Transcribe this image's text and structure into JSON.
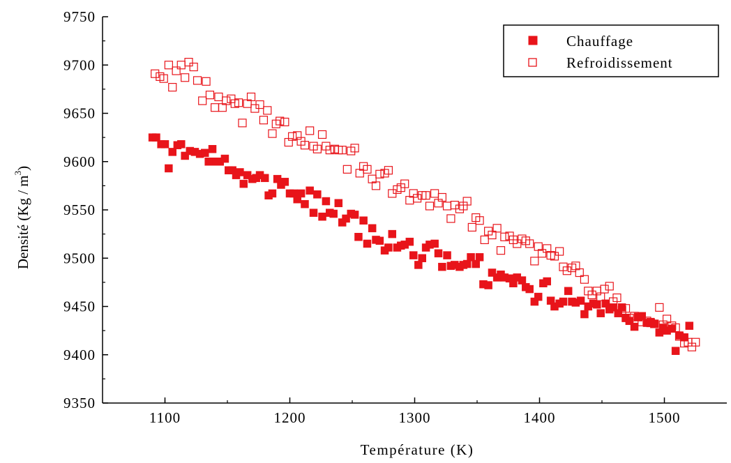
{
  "chart_data": {
    "type": "scatter",
    "title": "",
    "xlabel": "Température (K)",
    "ylabel_main": "Densité (Kg / m",
    "ylabel_sup": "3",
    "ylabel_close": ")",
    "xlim": [
      1050,
      1550
    ],
    "ylim": [
      9350,
      9750
    ],
    "xticks": [
      1100,
      1200,
      1300,
      1400,
      1500
    ],
    "yticks": [
      9350,
      9400,
      9450,
      9500,
      9550,
      9600,
      9650,
      9700,
      9750
    ],
    "xtick_labels": [
      "1100",
      "1200",
      "1300",
      "1400",
      "1500"
    ],
    "ytick_labels": [
      "9350",
      "9400",
      "9450",
      "9500",
      "9550",
      "9600",
      "9650",
      "9700",
      "9750"
    ],
    "grid": false,
    "legend_position": "top-right",
    "colors": {
      "series": "#e8141a",
      "axis": "#000000"
    },
    "series": [
      {
        "name": "Chauffage",
        "marker": "filled-square",
        "points": [
          [
            1090,
            9625
          ],
          [
            1093,
            9625
          ],
          [
            1097,
            9618
          ],
          [
            1100,
            9618
          ],
          [
            1103,
            9593
          ],
          [
            1106,
            9610
          ],
          [
            1110,
            9617
          ],
          [
            1113,
            9618
          ],
          [
            1116,
            9606
          ],
          [
            1120,
            9611
          ],
          [
            1124,
            9610
          ],
          [
            1128,
            9608
          ],
          [
            1132,
            9609
          ],
          [
            1135,
            9600
          ],
          [
            1138,
            9613
          ],
          [
            1141,
            9600
          ],
          [
            1144,
            9600
          ],
          [
            1148,
            9603
          ],
          [
            1151,
            9591
          ],
          [
            1154,
            9591
          ],
          [
            1157,
            9586
          ],
          [
            1160,
            9589
          ],
          [
            1163,
            9577
          ],
          [
            1166,
            9586
          ],
          [
            1170,
            9582
          ],
          [
            1173,
            9583
          ],
          [
            1176,
            9586
          ],
          [
            1180,
            9583
          ],
          [
            1183,
            9565
          ],
          [
            1186,
            9567
          ],
          [
            1190,
            9582
          ],
          [
            1193,
            9576
          ],
          [
            1196,
            9579
          ],
          [
            1200,
            9567
          ],
          [
            1203,
            9567
          ],
          [
            1206,
            9561
          ],
          [
            1209,
            9567
          ],
          [
            1212,
            9556
          ],
          [
            1216,
            9570
          ],
          [
            1219,
            9547
          ],
          [
            1222,
            9566
          ],
          [
            1226,
            9543
          ],
          [
            1229,
            9559
          ],
          [
            1232,
            9547
          ],
          [
            1235,
            9546
          ],
          [
            1239,
            9557
          ],
          [
            1242,
            9537
          ],
          [
            1245,
            9541
          ],
          [
            1249,
            9546
          ],
          [
            1252,
            9545
          ],
          [
            1255,
            9522
          ],
          [
            1259,
            9539
          ],
          [
            1262,
            9515
          ],
          [
            1266,
            9531
          ],
          [
            1269,
            9519
          ],
          [
            1272,
            9518
          ],
          [
            1276,
            9508
          ],
          [
            1279,
            9511
          ],
          [
            1282,
            9525
          ],
          [
            1286,
            9511
          ],
          [
            1289,
            9513
          ],
          [
            1292,
            9514
          ],
          [
            1296,
            9517
          ],
          [
            1299,
            9503
          ],
          [
            1303,
            9493
          ],
          [
            1306,
            9500
          ],
          [
            1309,
            9511
          ],
          [
            1312,
            9514
          ],
          [
            1316,
            9515
          ],
          [
            1319,
            9505
          ],
          [
            1322,
            9491
          ],
          [
            1326,
            9503
          ],
          [
            1329,
            9492
          ],
          [
            1332,
            9493
          ],
          [
            1336,
            9491
          ],
          [
            1339,
            9493
          ],
          [
            1342,
            9494
          ],
          [
            1345,
            9501
          ],
          [
            1349,
            9494
          ],
          [
            1352,
            9501
          ],
          [
            1355,
            9473
          ],
          [
            1359,
            9472
          ],
          [
            1362,
            9485
          ],
          [
            1366,
            9480
          ],
          [
            1369,
            9483
          ],
          [
            1372,
            9480
          ],
          [
            1376,
            9479
          ],
          [
            1379,
            9474
          ],
          [
            1382,
            9480
          ],
          [
            1386,
            9477
          ],
          [
            1389,
            9470
          ],
          [
            1392,
            9468
          ],
          [
            1396,
            9455
          ],
          [
            1399,
            9460
          ],
          [
            1403,
            9474
          ],
          [
            1406,
            9476
          ],
          [
            1409,
            9456
          ],
          [
            1412,
            9450
          ],
          [
            1416,
            9453
          ],
          [
            1419,
            9455
          ],
          [
            1423,
            9466
          ],
          [
            1426,
            9455
          ],
          [
            1429,
            9454
          ],
          [
            1433,
            9456
          ],
          [
            1436,
            9442
          ],
          [
            1439,
            9450
          ],
          [
            1443,
            9453
          ],
          [
            1446,
            9452
          ],
          [
            1449,
            9443
          ],
          [
            1453,
            9453
          ],
          [
            1456,
            9447
          ],
          [
            1459,
            9449
          ],
          [
            1463,
            9443
          ],
          [
            1466,
            9449
          ],
          [
            1469,
            9438
          ],
          [
            1472,
            9435
          ],
          [
            1476,
            9429
          ],
          [
            1479,
            9439
          ],
          [
            1482,
            9440
          ],
          [
            1486,
            9433
          ],
          [
            1489,
            9434
          ],
          [
            1492,
            9432
          ],
          [
            1496,
            9423
          ],
          [
            1499,
            9428
          ],
          [
            1502,
            9425
          ],
          [
            1506,
            9427
          ],
          [
            1509,
            9404
          ],
          [
            1512,
            9420
          ],
          [
            1516,
            9418
          ],
          [
            1520,
            9430
          ]
        ]
      },
      {
        "name": "Refroidissement",
        "marker": "open-square",
        "points": [
          [
            1092,
            9691
          ],
          [
            1096,
            9688
          ],
          [
            1099,
            9686
          ],
          [
            1103,
            9700
          ],
          [
            1106,
            9677
          ],
          [
            1109,
            9694
          ],
          [
            1113,
            9700
          ],
          [
            1116,
            9687
          ],
          [
            1119,
            9703
          ],
          [
            1123,
            9698
          ],
          [
            1126,
            9684
          ],
          [
            1130,
            9663
          ],
          [
            1133,
            9683
          ],
          [
            1136,
            9669
          ],
          [
            1140,
            9656
          ],
          [
            1143,
            9667
          ],
          [
            1146,
            9656
          ],
          [
            1149,
            9663
          ],
          [
            1153,
            9665
          ],
          [
            1156,
            9660
          ],
          [
            1159,
            9661
          ],
          [
            1162,
            9640
          ],
          [
            1166,
            9660
          ],
          [
            1169,
            9667
          ],
          [
            1172,
            9655
          ],
          [
            1176,
            9659
          ],
          [
            1179,
            9643
          ],
          [
            1182,
            9653
          ],
          [
            1186,
            9629
          ],
          [
            1189,
            9639
          ],
          [
            1192,
            9642
          ],
          [
            1196,
            9641
          ],
          [
            1199,
            9620
          ],
          [
            1202,
            9626
          ],
          [
            1206,
            9627
          ],
          [
            1209,
            9621
          ],
          [
            1212,
            9617
          ],
          [
            1216,
            9632
          ],
          [
            1219,
            9616
          ],
          [
            1222,
            9613
          ],
          [
            1226,
            9628
          ],
          [
            1229,
            9616
          ],
          [
            1232,
            9612
          ],
          [
            1236,
            9613
          ],
          [
            1239,
            9612
          ],
          [
            1242,
            9612
          ],
          [
            1246,
            9592
          ],
          [
            1249,
            9611
          ],
          [
            1252,
            9614
          ],
          [
            1256,
            9588
          ],
          [
            1259,
            9595
          ],
          [
            1262,
            9592
          ],
          [
            1266,
            9582
          ],
          [
            1269,
            9575
          ],
          [
            1272,
            9587
          ],
          [
            1276,
            9588
          ],
          [
            1279,
            9591
          ],
          [
            1282,
            9567
          ],
          [
            1286,
            9571
          ],
          [
            1289,
            9573
          ],
          [
            1292,
            9577
          ],
          [
            1296,
            9560
          ],
          [
            1299,
            9567
          ],
          [
            1302,
            9562
          ],
          [
            1306,
            9565
          ],
          [
            1309,
            9565
          ],
          [
            1312,
            9554
          ],
          [
            1316,
            9567
          ],
          [
            1319,
            9557
          ],
          [
            1322,
            9563
          ],
          [
            1326,
            9554
          ],
          [
            1329,
            9541
          ],
          [
            1332,
            9555
          ],
          [
            1336,
            9551
          ],
          [
            1339,
            9554
          ],
          [
            1342,
            9559
          ],
          [
            1346,
            9532
          ],
          [
            1349,
            9542
          ],
          [
            1352,
            9539
          ],
          [
            1356,
            9519
          ],
          [
            1359,
            9528
          ],
          [
            1362,
            9524
          ],
          [
            1366,
            9531
          ],
          [
            1369,
            9508
          ],
          [
            1372,
            9522
          ],
          [
            1376,
            9523
          ],
          [
            1379,
            9519
          ],
          [
            1382,
            9515
          ],
          [
            1386,
            9520
          ],
          [
            1389,
            9518
          ],
          [
            1392,
            9515
          ],
          [
            1396,
            9497
          ],
          [
            1399,
            9512
          ],
          [
            1402,
            9505
          ],
          [
            1406,
            9510
          ],
          [
            1409,
            9503
          ],
          [
            1412,
            9502
          ],
          [
            1416,
            9507
          ],
          [
            1419,
            9491
          ],
          [
            1422,
            9487
          ],
          [
            1426,
            9490
          ],
          [
            1429,
            9492
          ],
          [
            1432,
            9485
          ],
          [
            1436,
            9478
          ],
          [
            1439,
            9466
          ],
          [
            1442,
            9462
          ],
          [
            1446,
            9466
          ],
          [
            1449,
            9460
          ],
          [
            1452,
            9468
          ],
          [
            1456,
            9471
          ],
          [
            1459,
            9455
          ],
          [
            1462,
            9459
          ],
          [
            1466,
            9446
          ],
          [
            1469,
            9448
          ],
          [
            1472,
            9438
          ],
          [
            1476,
            9440
          ],
          [
            1479,
            9439
          ],
          [
            1482,
            9434
          ],
          [
            1486,
            9435
          ],
          [
            1489,
            9433
          ],
          [
            1492,
            9432
          ],
          [
            1496,
            9449
          ],
          [
            1499,
            9431
          ],
          [
            1502,
            9437
          ],
          [
            1506,
            9430
          ],
          [
            1509,
            9428
          ],
          [
            1512,
            9419
          ],
          [
            1516,
            9412
          ],
          [
            1519,
            9413
          ],
          [
            1522,
            9408
          ],
          [
            1525,
            9413
          ]
        ]
      }
    ]
  }
}
